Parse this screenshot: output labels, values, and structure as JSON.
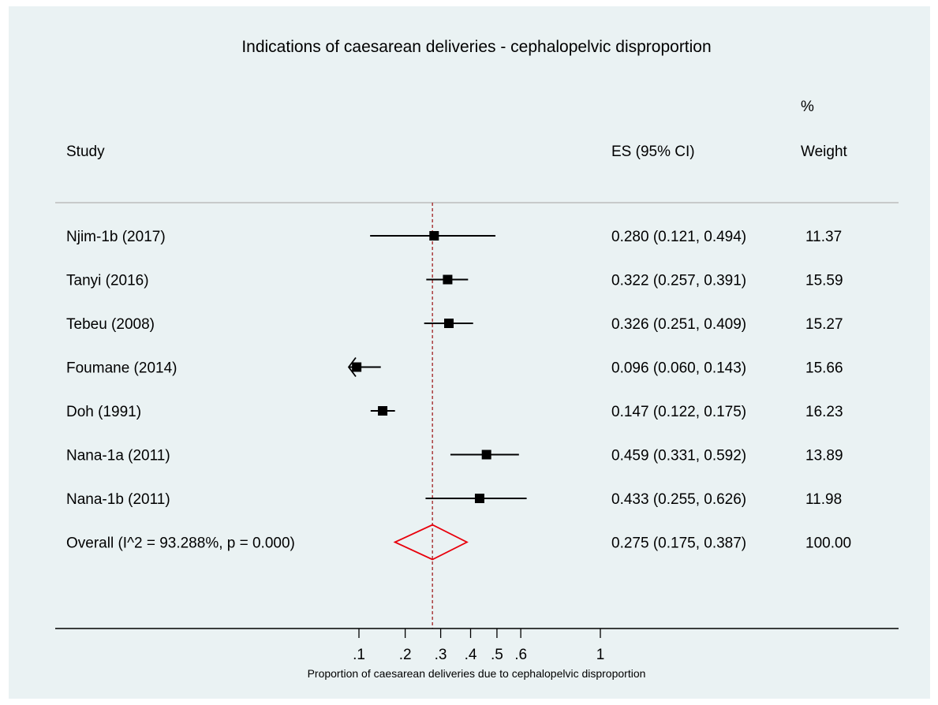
{
  "chart_data": {
    "type": "forest",
    "title": "Indications of caesarean deliveries - cephalopelvic disproportion",
    "xlabel": "Proportion of caesarean deliveries due to cephalopelvic disproportion",
    "xscale": "sqrt",
    "xlim": [
      0.1,
      1
    ],
    "ticks": [
      {
        "value": 0.1,
        "label": ".1"
      },
      {
        "value": 0.2,
        "label": ".2"
      },
      {
        "value": 0.3,
        "label": ".3"
      },
      {
        "value": 0.4,
        "label": ".4"
      },
      {
        "value": 0.5,
        "label": ".5"
      },
      {
        "value": 0.6,
        "label": ".6"
      },
      {
        "value": 1,
        "label": "1"
      }
    ],
    "headers": {
      "study": "Study",
      "es": "ES (95% CI)",
      "weight_top": "%",
      "weight_bottom": "Weight"
    },
    "studies": [
      {
        "label": "Njim-1b (2017)",
        "es": 0.28,
        "lo": 0.121,
        "hi": 0.494,
        "es_text": "0.280 (0.121, 0.494)",
        "weight": "11.37"
      },
      {
        "label": "Tanyi (2016)",
        "es": 0.322,
        "lo": 0.257,
        "hi": 0.391,
        "es_text": "0.322 (0.257, 0.391)",
        "weight": "15.59"
      },
      {
        "label": "Tebeu (2008)",
        "es": 0.326,
        "lo": 0.251,
        "hi": 0.409,
        "es_text": "0.326 (0.251, 0.409)",
        "weight": "15.27"
      },
      {
        "label": "Foumane (2014)",
        "es": 0.096,
        "lo": 0.06,
        "hi": 0.143,
        "es_text": "0.096 (0.060, 0.143)",
        "weight": "15.66"
      },
      {
        "label": "Doh (1991)",
        "es": 0.147,
        "lo": 0.122,
        "hi": 0.175,
        "es_text": "0.147 (0.122, 0.175)",
        "weight": "16.23"
      },
      {
        "label": "Nana-1a (2011)",
        "es": 0.459,
        "lo": 0.331,
        "hi": 0.592,
        "es_text": "0.459 (0.331, 0.592)",
        "weight": "13.89"
      },
      {
        "label": "Nana-1b (2011)",
        "es": 0.433,
        "lo": 0.255,
        "hi": 0.626,
        "es_text": "0.433 (0.255, 0.626)",
        "weight": "11.98"
      }
    ],
    "overall": {
      "label": "Overall  (I^2 = 93.288%, p = 0.000)",
      "es": 0.275,
      "lo": 0.175,
      "hi": 0.387,
      "es_text": "0.275 (0.175, 0.387)",
      "weight": "100.00"
    },
    "colors": {
      "background": "#eaf2f3",
      "overall_diamond": "#e8000b",
      "reference_line": "#a02020",
      "marker": "#000000",
      "header_rule": "#bdbdbd"
    }
  }
}
